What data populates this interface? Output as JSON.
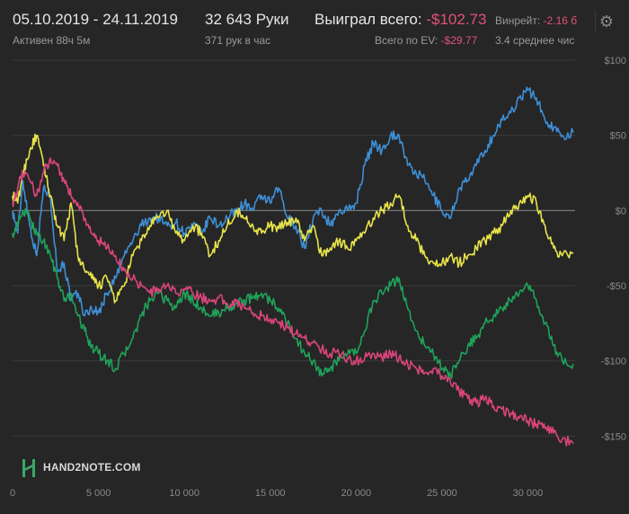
{
  "header": {
    "date_range": "05.10.2019 - 24.11.2019",
    "active_time": "Активен 88ч 5м",
    "hands": "32 643 Руки",
    "hands_per_hour": "371 рук в час",
    "won_total_label": "Выиграл всего:",
    "won_total_value": "-$102.73",
    "ev_total_label": "Всего по EV:",
    "ev_total_value": "-$29.77",
    "winrate_label": "Винрейт:",
    "winrate_value": "-2.16 б",
    "avg_text": "3.4 среднее чис",
    "settings_icon": "gear-icon"
  },
  "logo": {
    "text": "HAND2NOTE.COM",
    "icon": "h2n-logo-icon"
  },
  "colors": {
    "background": "#262626",
    "grid": "#3a3a3a",
    "zero_line": "#8c8c8c",
    "blue": "#3d8fd6",
    "yellow": "#e6e34a",
    "green": "#1fa35a",
    "pink": "#d9457a",
    "negative_text": "#e0527a"
  },
  "chart_data": {
    "type": "line",
    "title": "",
    "xlabel": "",
    "ylabel": "",
    "xlim": [
      0,
      32643
    ],
    "ylim": [
      -160,
      100
    ],
    "x_ticks": [
      0,
      5000,
      10000,
      15000,
      20000,
      25000,
      30000
    ],
    "x_tick_labels": [
      "0",
      "5 000",
      "10 000",
      "15 000",
      "20 000",
      "25 000",
      "30 000"
    ],
    "y_ticks": [
      100,
      50,
      0,
      -50,
      -100,
      -150
    ],
    "y_tick_labels": [
      "$100",
      "$50",
      "$0",
      "-$50",
      "-$100",
      "-$150"
    ],
    "grid": true,
    "series": [
      {
        "color": "blue",
        "points": [
          [
            0,
            0
          ],
          [
            300,
            -15
          ],
          [
            600,
            20
          ],
          [
            1000,
            -10
          ],
          [
            1400,
            -30
          ],
          [
            1800,
            15
          ],
          [
            2200,
            10
          ],
          [
            2600,
            -40
          ],
          [
            3000,
            -35
          ],
          [
            3400,
            -60
          ],
          [
            3800,
            -55
          ],
          [
            4200,
            -70
          ],
          [
            4600,
            -65
          ],
          [
            5000,
            -68
          ],
          [
            5500,
            -55
          ],
          [
            6000,
            -45
          ],
          [
            6500,
            -30
          ],
          [
            7000,
            -20
          ],
          [
            7500,
            -10
          ],
          [
            8000,
            -5
          ],
          [
            8500,
            -5
          ],
          [
            9000,
            -10
          ],
          [
            9500,
            -8
          ],
          [
            10000,
            -15
          ],
          [
            10500,
            -10
          ],
          [
            11000,
            -15
          ],
          [
            11500,
            -5
          ],
          [
            12000,
            -10
          ],
          [
            12500,
            -5
          ],
          [
            13000,
            0
          ],
          [
            13500,
            5
          ],
          [
            14000,
            0
          ],
          [
            14500,
            10
          ],
          [
            15000,
            5
          ],
          [
            15500,
            15
          ],
          [
            16000,
            -5
          ],
          [
            16500,
            -10
          ],
          [
            17000,
            -25
          ],
          [
            17500,
            -5
          ],
          [
            18000,
            0
          ],
          [
            18500,
            -10
          ],
          [
            19000,
            0
          ],
          [
            19500,
            0
          ],
          [
            20000,
            5
          ],
          [
            20500,
            30
          ],
          [
            21000,
            45
          ],
          [
            21500,
            40
          ],
          [
            22000,
            50
          ],
          [
            22500,
            50
          ],
          [
            23000,
            30
          ],
          [
            23500,
            25
          ],
          [
            24000,
            20
          ],
          [
            24500,
            10
          ],
          [
            25000,
            0
          ],
          [
            25500,
            -5
          ],
          [
            26000,
            15
          ],
          [
            26500,
            20
          ],
          [
            27000,
            30
          ],
          [
            27500,
            40
          ],
          [
            28000,
            50
          ],
          [
            28500,
            60
          ],
          [
            29000,
            65
          ],
          [
            29500,
            75
          ],
          [
            30000,
            80
          ],
          [
            30500,
            75
          ],
          [
            31000,
            60
          ],
          [
            31500,
            55
          ],
          [
            32000,
            50
          ],
          [
            32643,
            52
          ]
        ]
      },
      {
        "color": "yellow",
        "points": [
          [
            0,
            10
          ],
          [
            300,
            5
          ],
          [
            600,
            25
          ],
          [
            1000,
            40
          ],
          [
            1400,
            50
          ],
          [
            1800,
            30
          ],
          [
            2200,
            10
          ],
          [
            2600,
            -10
          ],
          [
            3000,
            -20
          ],
          [
            3400,
            5
          ],
          [
            3800,
            -30
          ],
          [
            4200,
            -40
          ],
          [
            4600,
            -45
          ],
          [
            5000,
            -50
          ],
          [
            5500,
            -45
          ],
          [
            6000,
            -60
          ],
          [
            6500,
            -50
          ],
          [
            7000,
            -30
          ],
          [
            7500,
            -20
          ],
          [
            8000,
            -10
          ],
          [
            8500,
            -5
          ],
          [
            9000,
            0
          ],
          [
            9500,
            -15
          ],
          [
            10000,
            -20
          ],
          [
            10500,
            -10
          ],
          [
            11000,
            -15
          ],
          [
            11500,
            -30
          ],
          [
            12000,
            -20
          ],
          [
            12500,
            -10
          ],
          [
            13000,
            0
          ],
          [
            13500,
            -5
          ],
          [
            14000,
            -10
          ],
          [
            14500,
            -15
          ],
          [
            15000,
            -10
          ],
          [
            15500,
            -12
          ],
          [
            16000,
            -8
          ],
          [
            16500,
            -5
          ],
          [
            17000,
            -20
          ],
          [
            17500,
            -10
          ],
          [
            18000,
            -30
          ],
          [
            18500,
            -25
          ],
          [
            19000,
            -20
          ],
          [
            19500,
            -25
          ],
          [
            20000,
            -20
          ],
          [
            20500,
            -15
          ],
          [
            21000,
            -5
          ],
          [
            21500,
            0
          ],
          [
            22000,
            5
          ],
          [
            22500,
            10
          ],
          [
            23000,
            -10
          ],
          [
            23500,
            -20
          ],
          [
            24000,
            -30
          ],
          [
            24500,
            -35
          ],
          [
            25000,
            -35
          ],
          [
            25500,
            -30
          ],
          [
            26000,
            -35
          ],
          [
            26500,
            -30
          ],
          [
            27000,
            -25
          ],
          [
            27500,
            -20
          ],
          [
            28000,
            -15
          ],
          [
            28500,
            -10
          ],
          [
            29000,
            0
          ],
          [
            29500,
            5
          ],
          [
            30000,
            10
          ],
          [
            30500,
            5
          ],
          [
            31000,
            -10
          ],
          [
            31500,
            -25
          ],
          [
            32000,
            -30
          ],
          [
            32643,
            -28
          ]
        ]
      },
      {
        "color": "green",
        "points": [
          [
            0,
            -15
          ],
          [
            300,
            -10
          ],
          [
            600,
            0
          ],
          [
            1000,
            -5
          ],
          [
            1400,
            -15
          ],
          [
            1800,
            -20
          ],
          [
            2200,
            -30
          ],
          [
            2600,
            -45
          ],
          [
            3000,
            -60
          ],
          [
            3400,
            -55
          ],
          [
            3800,
            -70
          ],
          [
            4200,
            -80
          ],
          [
            4600,
            -90
          ],
          [
            5000,
            -95
          ],
          [
            5500,
            -100
          ],
          [
            6000,
            -105
          ],
          [
            6500,
            -95
          ],
          [
            7000,
            -85
          ],
          [
            7500,
            -70
          ],
          [
            8000,
            -60
          ],
          [
            8500,
            -55
          ],
          [
            9000,
            -60
          ],
          [
            9500,
            -65
          ],
          [
            10000,
            -55
          ],
          [
            10500,
            -60
          ],
          [
            11000,
            -65
          ],
          [
            11500,
            -70
          ],
          [
            12000,
            -68
          ],
          [
            12500,
            -65
          ],
          [
            13000,
            -62
          ],
          [
            13500,
            -60
          ],
          [
            14000,
            -58
          ],
          [
            14500,
            -55
          ],
          [
            15000,
            -60
          ],
          [
            15500,
            -65
          ],
          [
            16000,
            -75
          ],
          [
            16500,
            -85
          ],
          [
            17000,
            -95
          ],
          [
            17500,
            -100
          ],
          [
            18000,
            -110
          ],
          [
            18500,
            -105
          ],
          [
            19000,
            -100
          ],
          [
            19500,
            -95
          ],
          [
            20000,
            -95
          ],
          [
            20500,
            -80
          ],
          [
            21000,
            -60
          ],
          [
            21500,
            -55
          ],
          [
            22000,
            -50
          ],
          [
            22500,
            -45
          ],
          [
            23000,
            -65
          ],
          [
            23500,
            -80
          ],
          [
            24000,
            -90
          ],
          [
            24500,
            -95
          ],
          [
            25000,
            -105
          ],
          [
            25500,
            -110
          ],
          [
            26000,
            -100
          ],
          [
            26500,
            -90
          ],
          [
            27000,
            -85
          ],
          [
            27500,
            -75
          ],
          [
            28000,
            -70
          ],
          [
            28500,
            -65
          ],
          [
            29000,
            -60
          ],
          [
            29500,
            -55
          ],
          [
            30000,
            -50
          ],
          [
            30500,
            -60
          ],
          [
            31000,
            -75
          ],
          [
            31500,
            -90
          ],
          [
            32000,
            -100
          ],
          [
            32643,
            -102
          ]
        ]
      },
      {
        "color": "pink",
        "points": [
          [
            0,
            5
          ],
          [
            300,
            15
          ],
          [
            600,
            25
          ],
          [
            1000,
            20
          ],
          [
            1400,
            10
          ],
          [
            1800,
            25
          ],
          [
            2200,
            35
          ],
          [
            2600,
            30
          ],
          [
            3000,
            20
          ],
          [
            3400,
            10
          ],
          [
            3800,
            5
          ],
          [
            4200,
            -5
          ],
          [
            4600,
            -15
          ],
          [
            5000,
            -20
          ],
          [
            5500,
            -25
          ],
          [
            6000,
            -30
          ],
          [
            6500,
            -40
          ],
          [
            7000,
            -45
          ],
          [
            7500,
            -50
          ],
          [
            8000,
            -55
          ],
          [
            8500,
            -52
          ],
          [
            9000,
            -50
          ],
          [
            9500,
            -55
          ],
          [
            10000,
            -52
          ],
          [
            10500,
            -55
          ],
          [
            11000,
            -58
          ],
          [
            11500,
            -60
          ],
          [
            12000,
            -58
          ],
          [
            12500,
            -62
          ],
          [
            13000,
            -60
          ],
          [
            13500,
            -65
          ],
          [
            14000,
            -68
          ],
          [
            14500,
            -70
          ],
          [
            15000,
            -72
          ],
          [
            15500,
            -75
          ],
          [
            16000,
            -78
          ],
          [
            16500,
            -82
          ],
          [
            17000,
            -85
          ],
          [
            17500,
            -88
          ],
          [
            18000,
            -92
          ],
          [
            18500,
            -95
          ],
          [
            19000,
            -95
          ],
          [
            19500,
            -98
          ],
          [
            20000,
            -100
          ],
          [
            20500,
            -98
          ],
          [
            21000,
            -95
          ],
          [
            21500,
            -98
          ],
          [
            22000,
            -95
          ],
          [
            22500,
            -98
          ],
          [
            23000,
            -102
          ],
          [
            23500,
            -105
          ],
          [
            24000,
            -108
          ],
          [
            24500,
            -105
          ],
          [
            25000,
            -110
          ],
          [
            25500,
            -115
          ],
          [
            26000,
            -120
          ],
          [
            26500,
            -125
          ],
          [
            27000,
            -128
          ],
          [
            27500,
            -125
          ],
          [
            28000,
            -130
          ],
          [
            28500,
            -132
          ],
          [
            29000,
            -135
          ],
          [
            29500,
            -138
          ],
          [
            30000,
            -140
          ],
          [
            30500,
            -142
          ],
          [
            31000,
            -145
          ],
          [
            31500,
            -148
          ],
          [
            32000,
            -152
          ],
          [
            32643,
            -155
          ]
        ]
      }
    ]
  }
}
